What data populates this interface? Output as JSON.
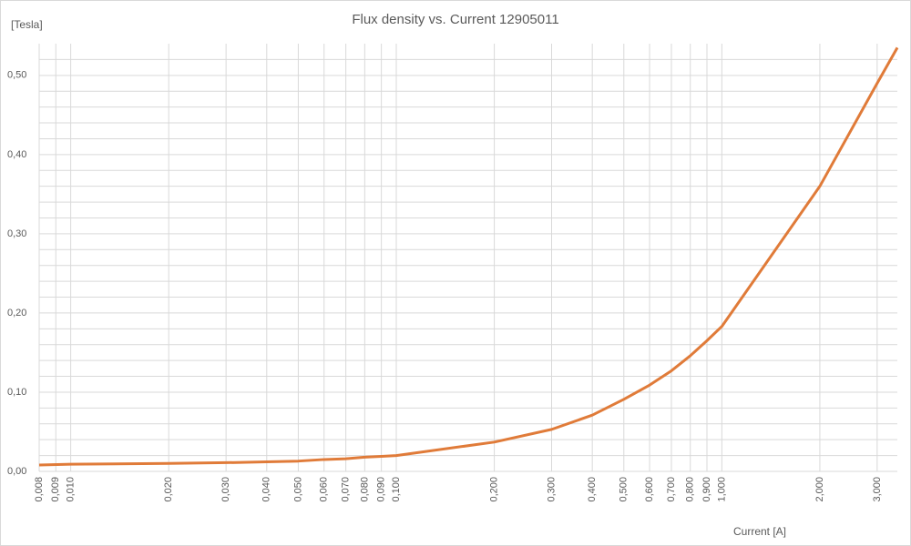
{
  "chart_data": {
    "type": "line",
    "title": "Flux density vs. Current 12905011",
    "y_label": "[Tesla]",
    "x_label": "Current [A]",
    "x": [
      0.008,
      0.01,
      0.02,
      0.03,
      0.04,
      0.05,
      0.06,
      0.07,
      0.08,
      0.09,
      0.1,
      0.2,
      0.3,
      0.4,
      0.5,
      0.6,
      0.7,
      0.8,
      0.9,
      1.0,
      2.0,
      3.0,
      3.46
    ],
    "values": [
      0.008,
      0.009,
      0.01,
      0.011,
      0.012,
      0.013,
      0.015,
      0.016,
      0.018,
      0.019,
      0.02,
      0.037,
      0.053,
      0.071,
      0.091,
      0.109,
      0.127,
      0.146,
      0.165,
      0.183,
      0.36,
      0.49,
      0.535
    ],
    "color": "#e07b39",
    "xscale": "log",
    "xlim": [
      0.008,
      3.46
    ],
    "xticks": [
      {
        "value": 0.008,
        "label": "0,008"
      },
      {
        "value": 0.009,
        "label": "0,009"
      },
      {
        "value": 0.01,
        "label": "0,010"
      },
      {
        "value": 0.02,
        "label": "0,020"
      },
      {
        "value": 0.03,
        "label": "0,030"
      },
      {
        "value": 0.04,
        "label": "0,040"
      },
      {
        "value": 0.05,
        "label": "0,050"
      },
      {
        "value": 0.06,
        "label": "0,060"
      },
      {
        "value": 0.07,
        "label": "0,070"
      },
      {
        "value": 0.08,
        "label": "0,080"
      },
      {
        "value": 0.09,
        "label": "0,090"
      },
      {
        "value": 0.1,
        "label": "0,100"
      },
      {
        "value": 0.2,
        "label": "0,200"
      },
      {
        "value": 0.3,
        "label": "0,300"
      },
      {
        "value": 0.4,
        "label": "0,400"
      },
      {
        "value": 0.5,
        "label": "0,500"
      },
      {
        "value": 0.6,
        "label": "0,600"
      },
      {
        "value": 0.7,
        "label": "0,700"
      },
      {
        "value": 0.8,
        "label": "0,800"
      },
      {
        "value": 0.9,
        "label": "0,900"
      },
      {
        "value": 1.0,
        "label": "1,000"
      },
      {
        "value": 2.0,
        "label": "2,000"
      },
      {
        "value": 3.0,
        "label": "3,000"
      }
    ],
    "ylim": [
      0,
      0.54
    ],
    "yticks": [
      {
        "value": 0,
        "label": "0,00"
      },
      {
        "value": 0.1,
        "label": "0,10"
      },
      {
        "value": 0.2,
        "label": "0,20"
      },
      {
        "value": 0.3,
        "label": "0,30"
      },
      {
        "value": 0.4,
        "label": "0,40"
      },
      {
        "value": 0.5,
        "label": "0,50"
      }
    ],
    "yminorticks": [
      0.02,
      0.04,
      0.06,
      0.08,
      0.12,
      0.14,
      0.16,
      0.18,
      0.22,
      0.24,
      0.26,
      0.28,
      0.32,
      0.34,
      0.36,
      0.38,
      0.42,
      0.44,
      0.46,
      0.48,
      0.52
    ],
    "grid": true
  }
}
